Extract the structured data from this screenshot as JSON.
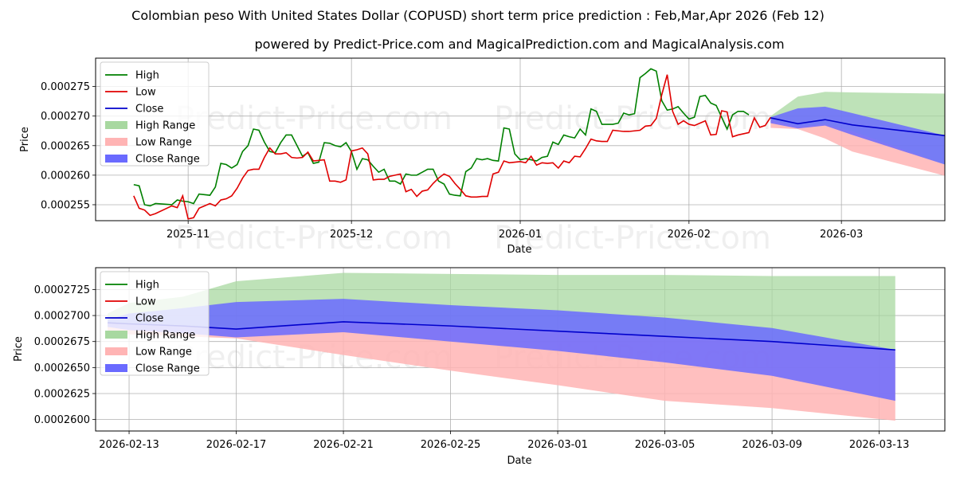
{
  "title": "Colombian peso With United States Dollar (COPUSD) short term price prediction : Feb,Mar,Apr 2026 (Feb 12)",
  "subtitle": "powered by Predict-Price.com and MagicalPrediction.com and MagicalAnalysis.com",
  "watermark": "Predict-Price.com",
  "colors": {
    "high": "#008000",
    "low": "#e00000",
    "close": "#0000cc",
    "high_range": "#a8d8a0",
    "low_range": "#ffb4b4",
    "close_range": "#6a6aff"
  },
  "legend": {
    "high": "High",
    "low": "Low",
    "close": "Close",
    "high_range": "High Range",
    "low_range": "Low Range",
    "close_range": "Close Range"
  },
  "chart_data": [
    {
      "type": "line",
      "name": "history-and-forecast",
      "xlabel": "Date",
      "ylabel": "Price",
      "x_ticks": [
        {
          "label": "2025-11",
          "day": 10
        },
        {
          "label": "2025-12",
          "day": 40
        },
        {
          "label": "2026-01",
          "day": 71
        },
        {
          "label": "2026-02",
          "day": 102
        },
        {
          "label": "2026-03",
          "day": 130
        }
      ],
      "xlim": [
        -7,
        149
      ],
      "ylim": [
        0.0002523,
        0.0002798
      ],
      "y_ticks": [
        "0.000255",
        "0.000260",
        "0.000265",
        "0.000270",
        "0.000275"
      ],
      "y_tick_values": [
        0.000255,
        0.00026,
        0.000265,
        0.00027,
        0.000275
      ],
      "x_days": [
        0,
        1,
        2,
        3,
        4,
        7,
        8,
        9,
        10,
        11,
        12,
        14,
        15,
        16,
        17,
        18,
        19,
        20,
        21,
        22,
        23,
        24,
        25,
        26,
        27,
        28,
        29,
        30,
        31,
        32,
        33,
        34,
        35,
        36,
        37,
        38,
        39,
        40,
        41,
        42,
        43,
        44,
        45,
        46,
        47,
        48,
        49,
        50,
        51,
        52,
        53,
        54,
        55,
        56,
        57,
        58,
        59,
        60,
        61,
        62,
        63,
        64,
        65,
        66,
        67,
        68,
        69,
        70,
        71,
        72,
        73,
        74,
        75,
        76,
        77,
        78,
        79,
        80,
        81,
        82,
        83,
        84,
        85,
        86,
        87,
        88,
        89,
        90,
        91,
        92,
        93,
        94,
        95,
        96,
        97,
        98,
        99,
        100,
        101,
        102,
        103,
        104,
        105,
        106,
        107,
        108,
        109,
        110,
        111,
        112,
        113,
        114,
        115,
        116,
        117
      ],
      "series": [
        {
          "name": "High",
          "values": [
            0.0002584,
            0.0002582,
            0.000255,
            0.0002548,
            0.0002552,
            0.000255,
            0.0002558,
            0.0002556,
            0.0002555,
            0.0002552,
            0.0002568,
            0.0002566,
            0.000258,
            0.000262,
            0.0002618,
            0.0002612,
            0.0002618,
            0.000264,
            0.000265,
            0.0002678,
            0.0002676,
            0.0002656,
            0.000264,
            0.0002638,
            0.0002655,
            0.0002668,
            0.0002668,
            0.000265,
            0.0002632,
            0.0002638,
            0.000262,
            0.0002622,
            0.0002655,
            0.0002654,
            0.000265,
            0.0002648,
            0.0002655,
            0.000264,
            0.000261,
            0.0002628,
            0.0002626,
            0.0002615,
            0.0002605,
            0.000261,
            0.000259,
            0.000259,
            0.0002585,
            0.0002602,
            0.00026,
            0.00026,
            0.0002605,
            0.000261,
            0.000261,
            0.000259,
            0.0002585,
            0.0002568,
            0.0002566,
            0.0002565,
            0.0002606,
            0.0002612,
            0.0002628,
            0.0002626,
            0.0002628,
            0.0002625,
            0.0002624,
            0.000268,
            0.0002678,
            0.0002636,
            0.0002626,
            0.0002628,
            0.0002626,
            0.0002624,
            0.000263,
            0.0002632,
            0.0002656,
            0.0002652,
            0.0002668,
            0.0002665,
            0.0002663,
            0.0002678,
            0.0002668,
            0.0002712,
            0.0002708,
            0.0002686,
            0.0002686,
            0.0002686,
            0.0002688,
            0.0002705,
            0.0002702,
            0.0002704,
            0.0002765,
            0.0002772,
            0.000278,
            0.0002776,
            0.0002726,
            0.000271,
            0.0002712,
            0.0002716,
            0.0002705,
            0.0002695,
            0.0002698,
            0.0002733,
            0.0002735,
            0.0002722,
            0.0002718,
            0.0002698,
            0.0002678,
            0.0002702,
            0.0002708,
            0.0002708,
            0.0002702
          ]
        },
        {
          "name": "Low",
          "values": [
            0.0002565,
            0.0002544,
            0.0002541,
            0.0002532,
            0.0002535,
            0.0002548,
            0.0002545,
            0.0002565,
            0.0002526,
            0.0002528,
            0.0002544,
            0.0002552,
            0.0002548,
            0.0002558,
            0.000256,
            0.0002565,
            0.0002578,
            0.0002595,
            0.0002608,
            0.000261,
            0.000261,
            0.000263,
            0.0002646,
            0.0002636,
            0.0002636,
            0.0002638,
            0.000263,
            0.0002629,
            0.000263,
            0.0002639,
            0.0002624,
            0.0002625,
            0.0002626,
            0.000259,
            0.000259,
            0.0002588,
            0.0002592,
            0.0002641,
            0.0002643,
            0.0002646,
            0.0002636,
            0.0002592,
            0.0002593,
            0.0002593,
            0.0002598,
            0.00026,
            0.0002602,
            0.0002572,
            0.0002576,
            0.0002564,
            0.0002573,
            0.0002575,
            0.0002586,
            0.0002595,
            0.0002602,
            0.0002598,
            0.0002586,
            0.0002576,
            0.0002565,
            0.0002563,
            0.0002563,
            0.0002564,
            0.0002564,
            0.0002602,
            0.0002605,
            0.0002624,
            0.0002621,
            0.0002622,
            0.0002623,
            0.0002621,
            0.0002632,
            0.0002617,
            0.0002621,
            0.000262,
            0.0002621,
            0.0002612,
            0.0002624,
            0.0002621,
            0.0002632,
            0.0002631,
            0.0002645,
            0.0002661,
            0.0002658,
            0.0002657,
            0.0002657,
            0.0002676,
            0.0002675,
            0.0002674,
            0.0002674,
            0.0002675,
            0.0002676,
            0.0002683,
            0.0002684,
            0.0002696,
            0.0002736,
            0.000277,
            0.0002708,
            0.0002686,
            0.0002692,
            0.0002686,
            0.0002684,
            0.0002688,
            0.0002692,
            0.0002668,
            0.0002669,
            0.0002709,
            0.0002707,
            0.0002665,
            0.0002668,
            0.000267,
            0.0002672,
            0.0002697,
            0.0002681,
            0.0002684,
            0.0002698
          ]
        }
      ],
      "forecast": {
        "x_days": [
          117,
          122,
          127,
          132,
          149
        ],
        "close": [
          0.0002697,
          0.0002687,
          0.0002694,
          0.0002685,
          0.0002667
        ],
        "high_range": {
          "upper": [
            0.00027,
            0.0002733,
            0.0002741,
            0.000274,
            0.0002738
          ],
          "lower": [
            0.000269,
            0.0002683,
            0.0002686,
            0.0002674,
            0.0002618
          ]
        },
        "low_range": {
          "upper": [
            0.0002693,
            0.0002683,
            0.0002686,
            0.0002674,
            0.0002618
          ],
          "lower": [
            0.000268,
            0.0002678,
            0.0002662,
            0.000264,
            0.0002599
          ]
        },
        "close_range": {
          "upper": [
            0.0002698,
            0.0002713,
            0.0002716,
            0.0002705,
            0.0002667
          ],
          "lower": [
            0.0002688,
            0.0002679,
            0.0002684,
            0.0002668,
            0.0002618
          ]
        }
      },
      "legend_position": "top-left"
    },
    {
      "type": "line",
      "name": "forecast-detail",
      "xlabel": "Date",
      "ylabel": "Price",
      "x_ticks": [
        {
          "label": "2026-02-13",
          "day": 1
        },
        {
          "label": "2026-02-17",
          "day": 5
        },
        {
          "label": "2026-02-21",
          "day": 9
        },
        {
          "label": "2026-02-25",
          "day": 13
        },
        {
          "label": "2026-03-01",
          "day": 17
        },
        {
          "label": "2026-03-05",
          "day": 21
        },
        {
          "label": "2026-03-09",
          "day": 25
        },
        {
          "label": "2026-03-13",
          "day": 29
        }
      ],
      "xlim": [
        -0.25,
        31.45
      ],
      "ylim": [
        0.0002589,
        0.0002746
      ],
      "y_ticks": [
        "0.0002600",
        "0.0002625",
        "0.0002650",
        "0.0002675",
        "0.0002700",
        "0.0002725"
      ],
      "y_tick_values": [
        0.00026,
        0.0002625,
        0.000265,
        0.0002675,
        0.00027,
        0.0002725
      ],
      "forecast": {
        "x_days": [
          0.2,
          1,
          3,
          5,
          9,
          13,
          17,
          21,
          25,
          29.6
        ],
        "close": [
          0.0002693,
          0.0002692,
          0.000269,
          0.0002687,
          0.0002694,
          0.000269,
          0.0002685,
          0.000268,
          0.0002675,
          0.0002667
        ],
        "high_range": {
          "upper": [
            0.0002702,
            0.0002712,
            0.0002718,
            0.0002733,
            0.0002741,
            0.000274,
            0.0002739,
            0.0002739,
            0.0002738,
            0.0002738
          ],
          "lower": [
            0.0002693,
            0.0002692,
            0.000269,
            0.0002687,
            0.0002694,
            0.000269,
            0.0002685,
            0.000268,
            0.0002675,
            0.0002667
          ]
        },
        "low_range": {
          "upper": [
            0.0002693,
            0.0002692,
            0.000269,
            0.0002687,
            0.0002694,
            0.000269,
            0.0002685,
            0.000268,
            0.0002675,
            0.0002667
          ],
          "lower": [
            0.0002683,
            0.0002682,
            0.000268,
            0.0002678,
            0.0002662,
            0.0002647,
            0.0002633,
            0.0002618,
            0.0002611,
            0.0002599
          ]
        },
        "close_range": {
          "upper": [
            0.0002696,
            0.0002702,
            0.0002707,
            0.0002713,
            0.0002716,
            0.000271,
            0.0002705,
            0.0002698,
            0.0002688,
            0.0002667
          ],
          "lower": [
            0.0002689,
            0.0002686,
            0.0002683,
            0.0002679,
            0.0002684,
            0.0002675,
            0.0002666,
            0.0002655,
            0.0002642,
            0.0002618
          ]
        }
      },
      "legend_position": "top-left"
    }
  ]
}
